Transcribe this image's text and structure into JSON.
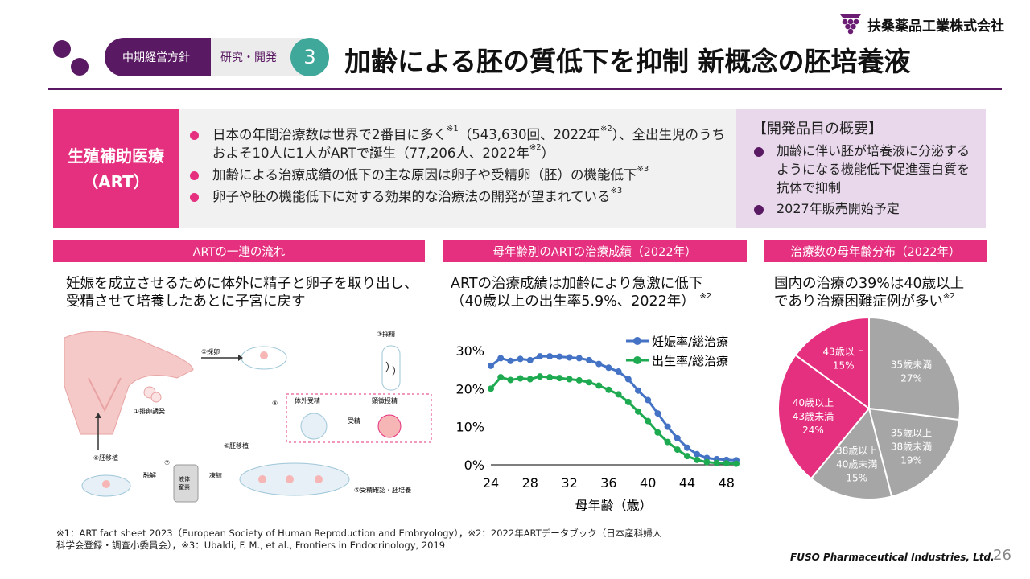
{
  "header": {
    "tag_primary": "中期経営方針",
    "tag_secondary": "研究・開発",
    "tag_number": "3",
    "title": "加齢による胚の質低下を抑制 新概念の胚培養液",
    "company": "扶桑薬品工業株式会社"
  },
  "art": {
    "label_line1": "生殖補助医療",
    "label_line2": "（ART）",
    "bullet1a": "日本の年間治療数は世界で2番目に多く",
    "bullet1a_sup": "※1",
    "bullet1b": "（543,630回、2022年",
    "bullet1b_sup": "※2",
    "bullet1c": "）、全出生児のうちおよそ10人に1人がARTで誕生（77,206人、2022年",
    "bullet1c_sup": "※2",
    "bullet1d": "）",
    "bullet2": "加齢による治療成績の低下の主な原因は卵子や受精卵（胚）の機能低下",
    "bullet2_sup": "※3",
    "bullet3": "卵子や胚の機能低下に対する効果的な治療法の開発が望まれている",
    "bullet3_sup": "※3"
  },
  "development": {
    "title": "【開発品目の概要】",
    "item1": "加齢に伴い胚が培養液に分泌するようになる機能低下促進蛋白質を抗体で抑制",
    "item2": "2027年販売開始予定"
  },
  "flow_section": {
    "heading": "ARTの一連の流れ",
    "text": "妊娠を成立させるために体外に精子と卵子を取り出し、受精させて培養したあとに子宮に戻す",
    "labels": {
      "step1": "①排卵誘発",
      "step2": "②採卵",
      "step3": "③採精",
      "step4": "④",
      "ivf": "体外受精",
      "icsi": "顕微授精",
      "fert": "受精",
      "step5": "⑤受精確認・胚培養",
      "step6a": "⑥胚移植",
      "step6b": "⑥胚移植",
      "step7": "⑦",
      "freeze": "凍結",
      "thaw": "融解",
      "ln2_1": "液体",
      "ln2_2": "窒素"
    }
  },
  "outcome_section": {
    "heading": "母年齢別のARTの治療成績（2022年）",
    "text_line1": "ARTの治療成績は加齢により急激に低下",
    "text_line2": "（40歳以上の出生率5.9%、2022年）",
    "text_sup": "※2"
  },
  "distribution_section": {
    "heading": "治療数の母年齢分布（2022年）",
    "text_line1": "国内の治療の39%は40歳以上",
    "text_line2": "であり治療困難症例が多い",
    "text_sup": "※2"
  },
  "chart_data": [
    {
      "type": "line",
      "xlabel": "母年齢（歳）",
      "ylabel": "",
      "xlim": [
        24,
        49
      ],
      "ylim": [
        0,
        30
      ],
      "xticks": [
        "24",
        "28",
        "32",
        "36",
        "40",
        "44",
        "48"
      ],
      "yticks": [
        "0%",
        "10%",
        "20%",
        "30%"
      ],
      "grid": false,
      "legend_position": "top-right",
      "x": [
        24,
        25,
        26,
        27,
        28,
        29,
        30,
        31,
        32,
        33,
        34,
        35,
        36,
        37,
        38,
        39,
        40,
        41,
        42,
        43,
        44,
        45,
        46,
        47,
        48,
        49
      ],
      "series": [
        {
          "name": "妊娠率/総治療",
          "color": "#4472c4",
          "values": [
            26.0,
            28.0,
            27.3,
            27.8,
            27.5,
            28.5,
            28.5,
            28.4,
            28.2,
            28.0,
            27.5,
            26.5,
            25.5,
            24.5,
            22.5,
            19.5,
            17.0,
            13.5,
            10.0,
            7.0,
            4.5,
            2.8,
            1.8,
            1.5,
            1.3,
            1.2
          ]
        },
        {
          "name": "出生率/総治療",
          "color": "#1daa50",
          "values": [
            20.0,
            23.0,
            22.3,
            22.7,
            22.5,
            23.2,
            23.0,
            22.8,
            22.5,
            22.2,
            21.7,
            20.8,
            19.7,
            18.5,
            16.5,
            14.0,
            11.5,
            8.5,
            6.0,
            4.0,
            2.3,
            1.3,
            0.7,
            0.5,
            0.4,
            0.3
          ]
        }
      ]
    },
    {
      "type": "pie",
      "slices": [
        {
          "label1": "35歳未満",
          "label2": "",
          "pct": "27%",
          "value": 27,
          "color": "#a6a6a6"
        },
        {
          "label1": "35歳以上",
          "label2": "38歳未満",
          "pct": "19%",
          "value": 19,
          "color": "#a6a6a6"
        },
        {
          "label1": "38歳以上",
          "label2": "40歳未満",
          "pct": "15%",
          "value": 15,
          "color": "#a6a6a6"
        },
        {
          "label1": "40歳以上",
          "label2": "43歳未満",
          "pct": "24%",
          "value": 24,
          "color": "#e5307f"
        },
        {
          "label1": "43歳以上",
          "label2": "",
          "pct": "15%",
          "value": 15,
          "color": "#e5307f"
        }
      ]
    }
  ],
  "footnote_line1": "※1：ART fact sheet 2023（European Society of Human Reproduction and Embryology），※2：2022年ARTデータブック（日本産科婦人",
  "footnote_line2": "科学会登録・調査小委員会），※3：Ubaldi, F. M., et al., Frontiers in Endocrinology, 2019",
  "brand": "FUSO Pharmaceutical Industries, Ltd.",
  "page_number": "26"
}
